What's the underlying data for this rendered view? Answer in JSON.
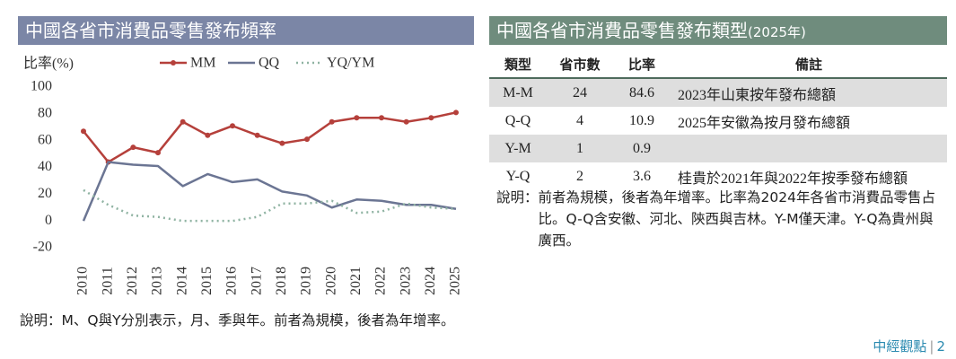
{
  "chart_data": {
    "type": "line",
    "title": "中國各省市消費品零售發布頻率",
    "y_label": "比率(%)",
    "categories": [
      "2010",
      "2011",
      "2012",
      "2013",
      "2014",
      "2015",
      "2016",
      "2017",
      "2018",
      "2019",
      "2020",
      "2021",
      "2022",
      "2023",
      "2024",
      "2025"
    ],
    "series": [
      {
        "name": "MM",
        "color": "#b5403b",
        "style": "solid",
        "markers": true,
        "values": [
          67,
          44,
          55,
          51,
          74,
          64,
          71,
          64,
          58,
          61,
          74,
          77,
          77,
          74,
          77,
          81
        ]
      },
      {
        "name": "QQ",
        "color": "#6b7593",
        "style": "solid",
        "markers": false,
        "values": [
          0,
          44,
          42,
          41,
          26,
          35,
          29,
          31,
          22,
          19,
          10,
          16,
          15,
          12,
          12,
          9
        ]
      },
      {
        "name": "YQ/YM",
        "color": "#8fb3a2",
        "style": "dotted",
        "markers": false,
        "values": [
          23,
          12,
          4,
          3,
          0,
          0,
          0,
          3,
          13,
          13,
          15,
          6,
          7,
          13,
          10,
          9
        ]
      }
    ],
    "ylim": [
      -20,
      100
    ],
    "yticks": [
      -20,
      0,
      20,
      40,
      60,
      80,
      100
    ],
    "grid": false,
    "legend": "top",
    "note_label": "說明：",
    "note": "M、Q與Y分別表示，月、季與年。前者為規模，後者為年增率。"
  },
  "table": {
    "title": "中國各省市消費品零售發布類型",
    "title_suffix": "(2025年)",
    "header": [
      "類型",
      "省市數",
      "比率",
      "備註"
    ],
    "rows": [
      {
        "type": "M-M",
        "count": 24,
        "ratio": 84.6,
        "note": "2023年山東按年發布總額"
      },
      {
        "type": "Q-Q",
        "count": 4,
        "ratio": 10.9,
        "note": "2025年安徽為按月發布總額"
      },
      {
        "type": "Y-M",
        "count": 1,
        "ratio": 0.9
      },
      {
        "type": "Y-Q",
        "count": 2,
        "ratio": 3.6,
        "note": "桂貴於2021年與2022年按季發布總額"
      }
    ],
    "note_label": "說明：",
    "note": "前者為規模，後者為年增率。比率為2024年各省市消費品零售占比。Q-Q含安徽、河北、陝西與吉林。Y-M僅天津。Y-Q為貴州與廣西。"
  },
  "footer": {
    "brand": "中經觀點",
    "page": "2"
  }
}
